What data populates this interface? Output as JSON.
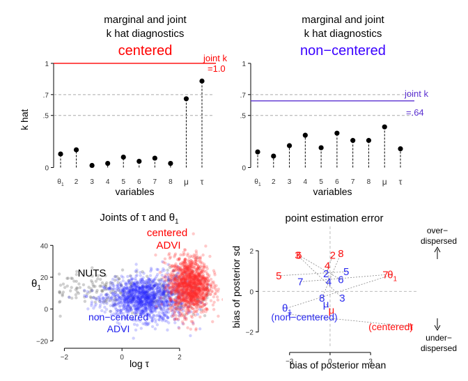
{
  "chart_data": [
    {
      "type": "scatter",
      "panel": "top-left",
      "title": [
        "marginal and joint",
        "k hat diagnostics"
      ],
      "subtitle": "centered",
      "subtitle_color": "#ff0000",
      "xlabel": "variables",
      "ylabel": "k hat",
      "categories": [
        "θ1",
        "2",
        "3",
        "4",
        "5",
        "6",
        "7",
        "8",
        "μ",
        "τ"
      ],
      "values": [
        0.13,
        0.17,
        0.02,
        0.04,
        0.1,
        0.06,
        0.09,
        0.04,
        0.66,
        0.83
      ],
      "yticks": [
        {
          "v": 0,
          "t": "0"
        },
        {
          "v": 0.5,
          "t": ".5"
        },
        {
          "v": 0.7,
          "t": ".7"
        },
        {
          "v": 1,
          "t": "1"
        }
      ],
      "ylim": [
        -0.05,
        1.1
      ],
      "joint_k": 1.0,
      "joint_label": [
        "joint k",
        "=1.0"
      ],
      "joint_color": "#ff0000"
    },
    {
      "type": "scatter",
      "panel": "top-right",
      "title": [
        "marginal and joint",
        "k hat diagnostics"
      ],
      "subtitle": "non−centered",
      "subtitle_color": "#3a00ff",
      "xlabel": "variables",
      "categories": [
        "θ1",
        "2",
        "3",
        "4",
        "5",
        "6",
        "7",
        "8",
        "μ",
        "τ"
      ],
      "values": [
        0.15,
        0.11,
        0.21,
        0.31,
        0.19,
        0.33,
        0.26,
        0.26,
        0.39,
        0.18
      ],
      "yticks": [
        {
          "v": 0,
          "t": "0"
        },
        {
          "v": 0.5,
          "t": ".5"
        },
        {
          "v": 0.7,
          "t": ".7"
        },
        {
          "v": 1,
          "t": "1"
        }
      ],
      "ylim": [
        -0.05,
        1.1
      ],
      "joint_k": 0.64,
      "joint_label": [
        "joint k",
        "=.64"
      ],
      "joint_color": "#5a2fd0"
    },
    {
      "type": "scatter",
      "panel": "bottom-left",
      "title": "Joints of τ and θ1",
      "xlabel": "log τ",
      "ylabel": "θ1",
      "xlim": [
        -2.3,
        3.5
      ],
      "ylim": [
        -22,
        55
      ],
      "xticks": [
        -2,
        0,
        2
      ],
      "yticks": [
        -20,
        0,
        20,
        40
      ],
      "series": [
        {
          "name": "NUTS",
          "color": "#777777",
          "cloud": {
            "x_range": [
              -2.2,
              3.0
            ],
            "y_mean": 12,
            "y_sd": 8,
            "n": 260
          }
        },
        {
          "name": "non−centered ADVI",
          "color": "#2a2aff",
          "cloud": {
            "x_center": 0.8,
            "x_sd": 0.7,
            "y_mean": 7,
            "y_sd": 6,
            "n": 1300
          }
        },
        {
          "name": "centered ADVI",
          "color": "#ff2a2a",
          "cloud": {
            "x_center": 2.35,
            "x_sd": 0.35,
            "y_mean": 15,
            "y_sd": 9,
            "n": 1300
          }
        }
      ],
      "labels": {
        "nuts": "NUTS",
        "noncentered": [
          "non−centered",
          "ADVI"
        ],
        "centered": [
          "centered",
          "ADVI"
        ]
      }
    },
    {
      "type": "scatter",
      "panel": "bottom-right",
      "title": "point estimation error",
      "xlabel": "bias of posterior mean",
      "ylabel": "bias of posterior sd",
      "xlim": [
        -5,
        6.5
      ],
      "ylim": [
        -2.8,
        3.2
      ],
      "xticks": [
        -3,
        0,
        3
      ],
      "yticks": [
        -2,
        0,
        2
      ],
      "centered_points": [
        {
          "label": "θ1",
          "x": 4.6,
          "y": 0.65
        },
        {
          "label": "7",
          "x": 4.1,
          "y": 0.65
        },
        {
          "label": "2",
          "x": 0.2,
          "y": 1.6
        },
        {
          "label": "8",
          "x": 0.8,
          "y": 1.7
        },
        {
          "label": "6",
          "x": -2.3,
          "y": 1.6
        },
        {
          "label": "3",
          "x": -2.4,
          "y": 1.6
        },
        {
          "label": "4",
          "x": -0.2,
          "y": 1.1
        },
        {
          "label": "5",
          "x": -3.8,
          "y": 0.6
        },
        {
          "label": "μ",
          "x": 0.1,
          "y": -1.1
        },
        {
          "label": "τ",
          "x": 6.0,
          "y": -1.9
        }
      ],
      "noncentered_points": [
        {
          "label": "2",
          "x": -0.3,
          "y": 0.7
        },
        {
          "label": "5",
          "x": 1.2,
          "y": 0.8
        },
        {
          "label": "6",
          "x": 0.8,
          "y": 0.4
        },
        {
          "label": "4",
          "x": -0.1,
          "y": 0.3
        },
        {
          "label": "7",
          "x": -2.2,
          "y": 0.3
        },
        {
          "label": "8",
          "x": -0.6,
          "y": -0.5
        },
        {
          "label": "3",
          "x": 0.9,
          "y": -0.5
        },
        {
          "label": "μ",
          "x": -0.3,
          "y": -0.8
        },
        {
          "label": "θ1",
          "x": -3.2,
          "y": -1.0
        },
        {
          "label": "τ",
          "x": -3.0,
          "y": -1.3
        }
      ],
      "labels": {
        "over": [
          "over−",
          "dispersed"
        ],
        "under": [
          "under−",
          "dispersed"
        ],
        "noncentered": "(non−centered)",
        "centered": "(centered)"
      }
    }
  ]
}
